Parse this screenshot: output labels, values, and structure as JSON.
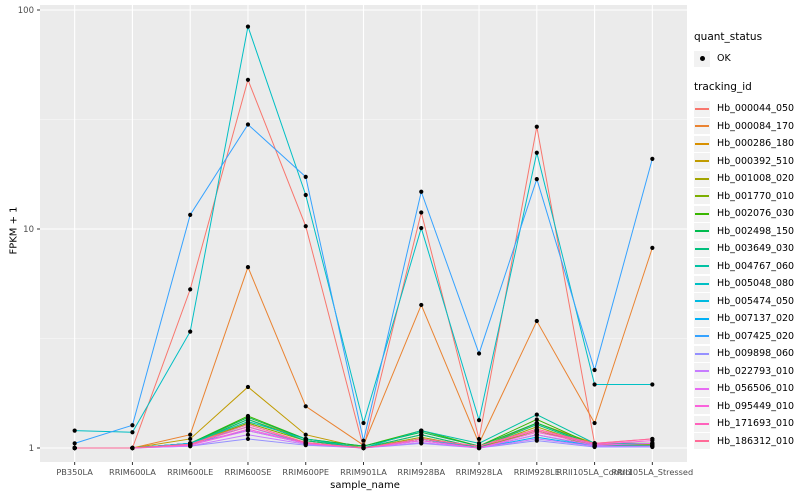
{
  "figure": {
    "background": "#FFFFFF",
    "panel_background": "#EBEBEB",
    "gridline_color": "#FFFFFF",
    "axis_text_color": "#4D4D4D",
    "tick_color": "#333333",
    "point_color": "#000000"
  },
  "legend": {
    "quant_status_title": "quant_status",
    "quant_status_items": [
      {
        "label": "OK",
        "marker": "black-point"
      }
    ],
    "tracking_id_title": "tracking_id"
  },
  "chart_data": {
    "type": "line",
    "title": "",
    "xlabel": "sample_name",
    "ylabel": "FPKM + 1",
    "y_scale": "log10",
    "y_ticks": [
      1,
      10,
      100
    ],
    "y_minor_ticks": [
      3.162,
      31.62
    ],
    "ylim": [
      0.91,
      105
    ],
    "grid": "on",
    "legend_position": "right",
    "marker_meaning": "quant_status OK (black point at every sample)",
    "categories": [
      "PB350LA",
      "RRIM600LA",
      "RRIM600LE",
      "RRIM600SE",
      "RRIM600PE",
      "RRIM901LA",
      "RRIM928BA",
      "RRIM928LA",
      "RRIM928LE",
      "RRII105LA_Control",
      "RRII105LA_Stressed"
    ],
    "series": [
      {
        "name": "Hb_000044_050",
        "color": "#F8766D",
        "values": [
          1.0,
          1.0,
          5.3,
          48.0,
          10.3,
          1.0,
          11.9,
          1.1,
          29.3,
          1.05,
          1.05
        ]
      },
      {
        "name": "Hb_000084_170",
        "color": "#EA8331",
        "values": [
          1.0,
          1.0,
          1.15,
          6.7,
          1.55,
          1.03,
          4.5,
          1.05,
          3.8,
          1.3,
          8.2
        ]
      },
      {
        "name": "Hb_000286_180",
        "color": "#D89000",
        "values": [
          1.0,
          1.0,
          1.05,
          1.3,
          1.08,
          1.0,
          1.1,
          1.0,
          1.2,
          1.04,
          1.04
        ]
      },
      {
        "name": "Hb_000392_510",
        "color": "#C09B00",
        "values": [
          1.0,
          1.0,
          1.1,
          1.9,
          1.15,
          1.0,
          1.15,
          1.0,
          1.3,
          1.05,
          1.05
        ]
      },
      {
        "name": "Hb_001008_020",
        "color": "#A3A500",
        "values": [
          1.0,
          1.0,
          1.05,
          1.35,
          1.1,
          1.0,
          1.12,
          1.0,
          1.25,
          1.02,
          1.02
        ]
      },
      {
        "name": "Hb_001770_010",
        "color": "#7CAE00",
        "values": [
          1.0,
          1.0,
          1.03,
          1.3,
          1.08,
          1.0,
          1.1,
          1.0,
          1.2,
          1.02,
          1.02
        ]
      },
      {
        "name": "Hb_002076_030",
        "color": "#39B600",
        "values": [
          1.0,
          1.0,
          1.05,
          1.4,
          1.1,
          1.02,
          1.2,
          1.02,
          1.35,
          1.03,
          1.03
        ]
      },
      {
        "name": "Hb_002498_150",
        "color": "#00BB4E",
        "values": [
          1.0,
          1.0,
          1.05,
          1.38,
          1.1,
          1.02,
          1.18,
          1.02,
          1.3,
          1.03,
          1.03
        ]
      },
      {
        "name": "Hb_003649_030",
        "color": "#00BF7D",
        "values": [
          1.0,
          1.0,
          1.04,
          1.35,
          1.08,
          1.0,
          1.15,
          1.0,
          1.28,
          1.02,
          1.02
        ]
      },
      {
        "name": "Hb_004767_060",
        "color": "#00C1A3",
        "values": [
          1.0,
          1.0,
          1.05,
          1.32,
          1.1,
          1.0,
          1.2,
          1.05,
          1.42,
          1.05,
          1.05
        ]
      },
      {
        "name": "Hb_005048_080",
        "color": "#00BFC4",
        "values": [
          1.2,
          1.18,
          3.4,
          84.0,
          14.3,
          1.3,
          10.1,
          1.34,
          22.3,
          1.95,
          1.95
        ]
      },
      {
        "name": "Hb_005474_050",
        "color": "#00BAE0",
        "values": [
          1.0,
          1.0,
          1.05,
          1.25,
          1.05,
          1.0,
          1.1,
          1.0,
          1.15,
          1.02,
          1.02
        ]
      },
      {
        "name": "Hb_007137_020",
        "color": "#00B0F6",
        "values": [
          1.0,
          1.0,
          1.05,
          1.2,
          1.05,
          1.0,
          1.08,
          1.0,
          1.12,
          1.02,
          1.02
        ]
      },
      {
        "name": "Hb_007425_020",
        "color": "#35A2FF",
        "values": [
          1.05,
          1.27,
          11.6,
          30.0,
          17.3,
          1.08,
          14.8,
          2.7,
          16.9,
          2.27,
          20.9
        ]
      },
      {
        "name": "Hb_009898_060",
        "color": "#9590FF",
        "values": [
          1.0,
          1.0,
          1.02,
          1.1,
          1.03,
          1.0,
          1.05,
          1.0,
          1.08,
          1.01,
          1.01
        ]
      },
      {
        "name": "Hb_022793_010",
        "color": "#C77CFF",
        "values": [
          1.0,
          1.0,
          1.02,
          1.15,
          1.04,
          1.0,
          1.06,
          1.0,
          1.1,
          1.02,
          1.02
        ]
      },
      {
        "name": "Hb_056506_010",
        "color": "#E76BF3",
        "values": [
          1.0,
          1.0,
          1.03,
          1.2,
          1.05,
          1.0,
          1.08,
          1.0,
          1.15,
          1.03,
          1.05
        ]
      },
      {
        "name": "Hb_095449_010",
        "color": "#FA62DB",
        "values": [
          1.0,
          1.0,
          1.03,
          1.22,
          1.05,
          1.0,
          1.08,
          1.0,
          1.18,
          1.04,
          1.08
        ]
      },
      {
        "name": "Hb_171693_010",
        "color": "#FF62BC",
        "values": [
          1.0,
          1.0,
          1.04,
          1.25,
          1.06,
          1.0,
          1.1,
          1.02,
          1.2,
          1.05,
          1.1
        ]
      },
      {
        "name": "Hb_186312_010",
        "color": "#FF6A98",
        "values": [
          1.0,
          1.0,
          1.04,
          1.28,
          1.06,
          1.0,
          1.1,
          1.02,
          1.22,
          1.05,
          1.1
        ]
      }
    ]
  }
}
